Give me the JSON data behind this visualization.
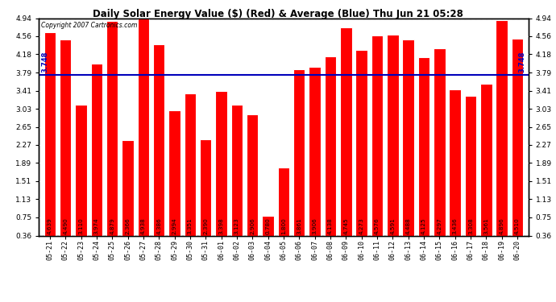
{
  "title": "Daily Solar Energy Value ($) (Red) & Average (Blue) Thu Jun 21 05:28",
  "copyright": "Copyright 2007 Cartronics.com",
  "average": 3.748,
  "bar_color": "#ff0000",
  "average_color": "#0000bb",
  "background_color": "#ffffff",
  "plot_bg_color": "#ffffff",
  "grid_color": "#ffffff",
  "ylim": [
    0.36,
    4.94
  ],
  "yticks": [
    0.36,
    0.75,
    1.13,
    1.51,
    1.89,
    2.27,
    2.65,
    3.03,
    3.41,
    3.79,
    4.18,
    4.56,
    4.94
  ],
  "categories": [
    "05-21",
    "05-22",
    "05-23",
    "05-24",
    "05-25",
    "05-26",
    "05-27",
    "05-28",
    "05-29",
    "05-30",
    "05-31",
    "06-01",
    "06-02",
    "06-03",
    "06-04",
    "06-05",
    "06-06",
    "06-07",
    "06-08",
    "06-09",
    "06-10",
    "06-11",
    "06-12",
    "06-13",
    "06-14",
    "06-15",
    "06-16",
    "06-17",
    "06-18",
    "06-19",
    "06-20"
  ],
  "values": [
    4.639,
    4.49,
    3.11,
    3.974,
    4.879,
    2.366,
    4.938,
    4.386,
    2.994,
    3.351,
    2.39,
    3.398,
    3.123,
    2.906,
    0.78,
    1.8,
    3.861,
    3.906,
    4.138,
    4.745,
    4.273,
    4.576,
    4.591,
    4.488,
    4.125,
    4.297,
    3.436,
    3.308,
    3.561,
    4.896,
    4.51
  ]
}
